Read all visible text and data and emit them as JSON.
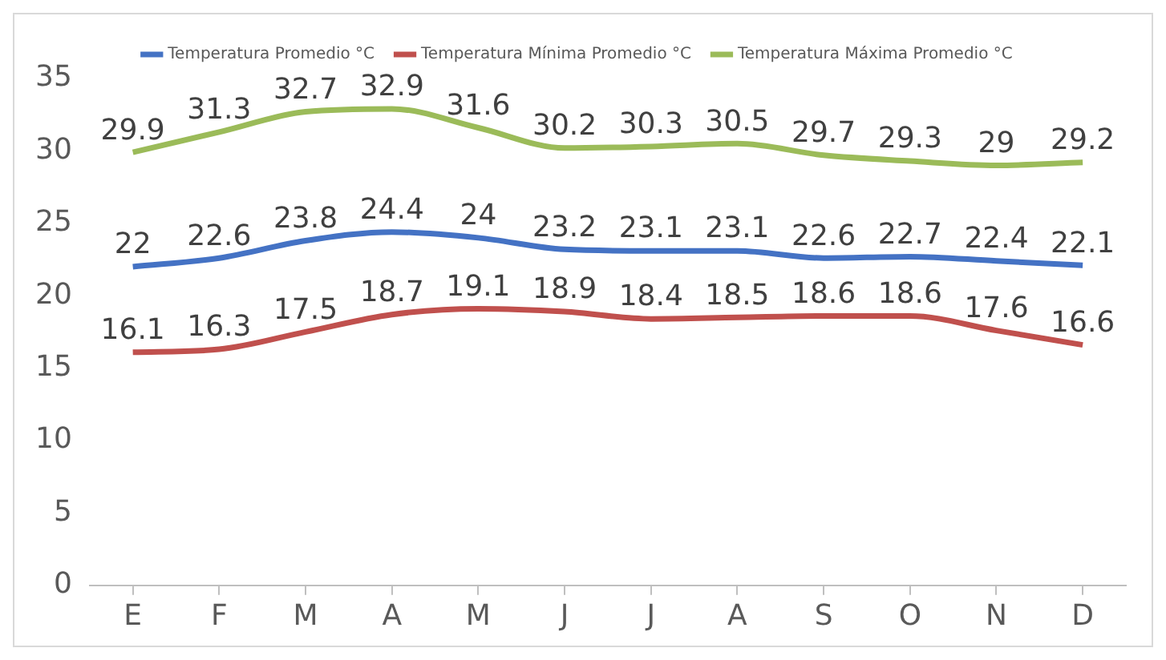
{
  "chart_data": {
    "type": "line",
    "categories": [
      "E",
      "F",
      "M",
      "A",
      "M",
      "J",
      "J",
      "A",
      "S",
      "O",
      "N",
      "D"
    ],
    "series": [
      {
        "name": "Temperatura Promedio °C",
        "color": "#4472c4",
        "values": [
          22,
          22.6,
          23.8,
          24.4,
          24,
          23.2,
          23.1,
          23.1,
          22.6,
          22.7,
          22.4,
          22.1
        ]
      },
      {
        "name": "Temperatura Mínima Promedio °C",
        "color": "#c0504d",
        "values": [
          16.1,
          16.3,
          17.5,
          18.7,
          19.1,
          18.9,
          18.4,
          18.5,
          18.6,
          18.6,
          17.6,
          16.6
        ]
      },
      {
        "name": "Temperatura Máxima Promedio °C",
        "color": "#9bbb59",
        "values": [
          29.9,
          31.3,
          32.7,
          32.9,
          31.6,
          30.2,
          30.3,
          30.5,
          29.7,
          29.3,
          29,
          29.2
        ]
      }
    ],
    "ylim": [
      0,
      35
    ],
    "yticks": [
      0,
      5,
      10,
      15,
      20,
      25,
      30,
      35
    ],
    "legend": "top",
    "marker": "none",
    "line_style": "solid",
    "data_labels": true
  }
}
